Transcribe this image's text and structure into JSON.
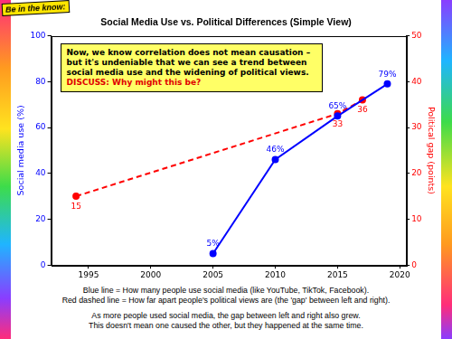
{
  "chart_data": {
    "type": "line",
    "title": "Social Media Use vs. Political Differences (Simple View)",
    "badge": "Be in the know:",
    "annotation": "Now, we know correlation does not mean causation – but it's undeniable that we can see a trend between social media use and the widening of political views.",
    "annotation_highlight": "DISCUSS: Why might this be?",
    "notes": [
      "Blue line = How many people use social media (like YouTube, TikTok, Facebook).",
      "Red dashed line = How far apart people's political views are (the 'gap' between left and right).",
      "As more people used social media, the gap between left and right also grew.",
      "This doesn't mean one caused the other, but they happened at the same time."
    ],
    "y_label": "Social media use (%)",
    "y2_label": "Political gap (points)",
    "xlim": [
      1992,
      2020.5
    ],
    "xticks": [
      1995,
      2000,
      2005,
      2010,
      2015,
      2020
    ],
    "ylim": [
      0,
      100
    ],
    "yticks": [
      0,
      20,
      40,
      60,
      80,
      100
    ],
    "y2lim": [
      0,
      50
    ],
    "y2ticks": [
      0,
      10,
      20,
      30,
      40,
      50
    ],
    "grid": false,
    "data_labels": true,
    "series": [
      {
        "color": "#0000ff",
        "marker": "circle",
        "line_style": "solid",
        "axis": "y",
        "x": [
          2005,
          2010,
          2015,
          2019
        ],
        "values": [
          5,
          46,
          65,
          79
        ],
        "value_labels": [
          "5%",
          "46%",
          "65%",
          "79%"
        ]
      },
      {
        "color": "#ff0000",
        "marker": "circle",
        "line_style": "dashed",
        "axis": "y2",
        "x": [
          1994,
          2015,
          2017
        ],
        "values": [
          15,
          33,
          36
        ]
      }
    ]
  }
}
